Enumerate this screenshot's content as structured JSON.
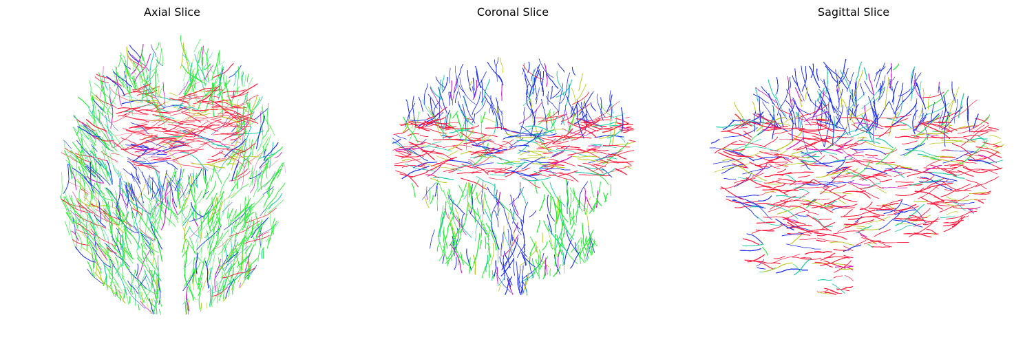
{
  "figure": {
    "panels": [
      {
        "title": "Axial Slice",
        "view": "axial"
      },
      {
        "title": "Coronal Slice",
        "view": "coronal"
      },
      {
        "title": "Sagittal Slice",
        "view": "sagittal"
      }
    ],
    "colors": {
      "left_right": "#ff1a3c",
      "anterior_posterior": "#22ee33",
      "superior_inferior": "#2233ee",
      "mixed_cyan": "#22ccaa",
      "mixed_yellow": "#bbcc22",
      "mixed_magenta": "#cc22cc",
      "background": "#ffffff"
    }
  }
}
